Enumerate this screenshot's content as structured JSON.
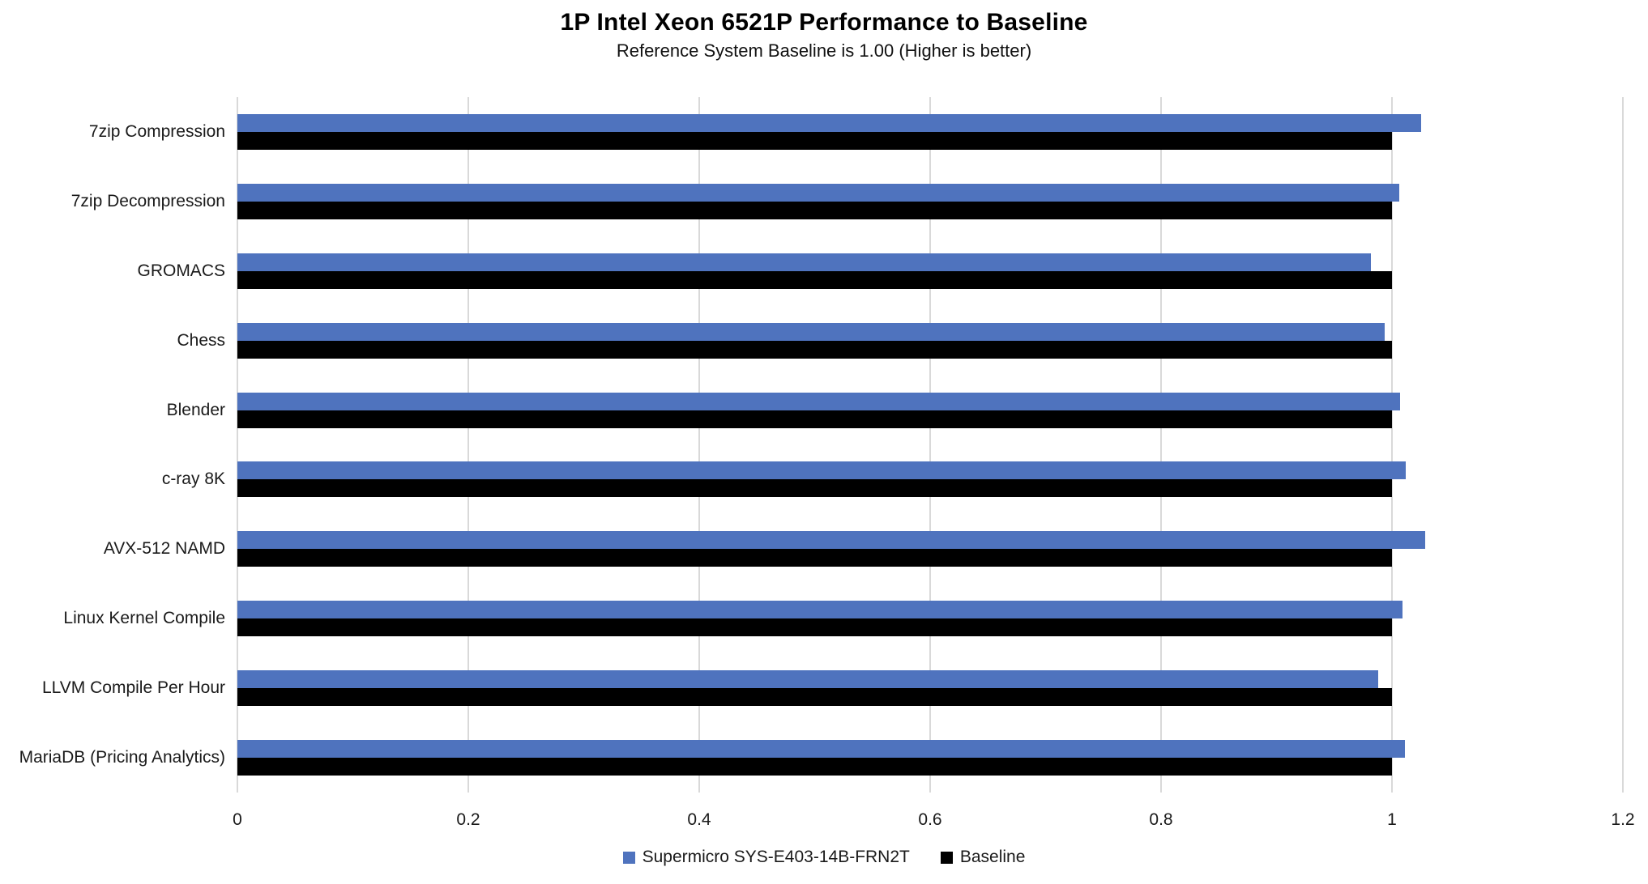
{
  "chart_data": {
    "type": "bar",
    "orientation": "horizontal",
    "title": "1P Intel Xeon 6521P Performance to Baseline",
    "subtitle": "Reference System Baseline is 1.00 (Higher is better)",
    "categories": [
      "7zip Compression",
      "7zip Decompression",
      "GROMACS",
      "Chess",
      "Blender",
      "c-ray 8K",
      "AVX-512 NAMD",
      "Linux Kernel Compile",
      "LLVM Compile Per Hour",
      "MariaDB (Pricing Analytics)"
    ],
    "series": [
      {
        "name": "Supermicro SYS-E403-14B-FRN2T",
        "color": "#4F73BE",
        "values": [
          1.025,
          1.006,
          0.982,
          0.994,
          1.007,
          1.012,
          1.029,
          1.009,
          0.988,
          1.011
        ]
      },
      {
        "name": "Baseline",
        "color": "#000000",
        "values": [
          1.0,
          1.0,
          1.0,
          1.0,
          1.0,
          1.0,
          1.0,
          1.0,
          1.0,
          1.0
        ]
      }
    ],
    "xlim": [
      0,
      1.2
    ],
    "xticks": [
      0,
      0.2,
      0.4,
      0.6,
      0.8,
      1,
      1.2
    ],
    "xtick_labels": [
      "0",
      "0.2",
      "0.4",
      "0.6",
      "0.8",
      "1",
      "1.2"
    ],
    "grid": "vertical",
    "gridline_color": "#D9D9D9",
    "legend_position": "bottom"
  }
}
